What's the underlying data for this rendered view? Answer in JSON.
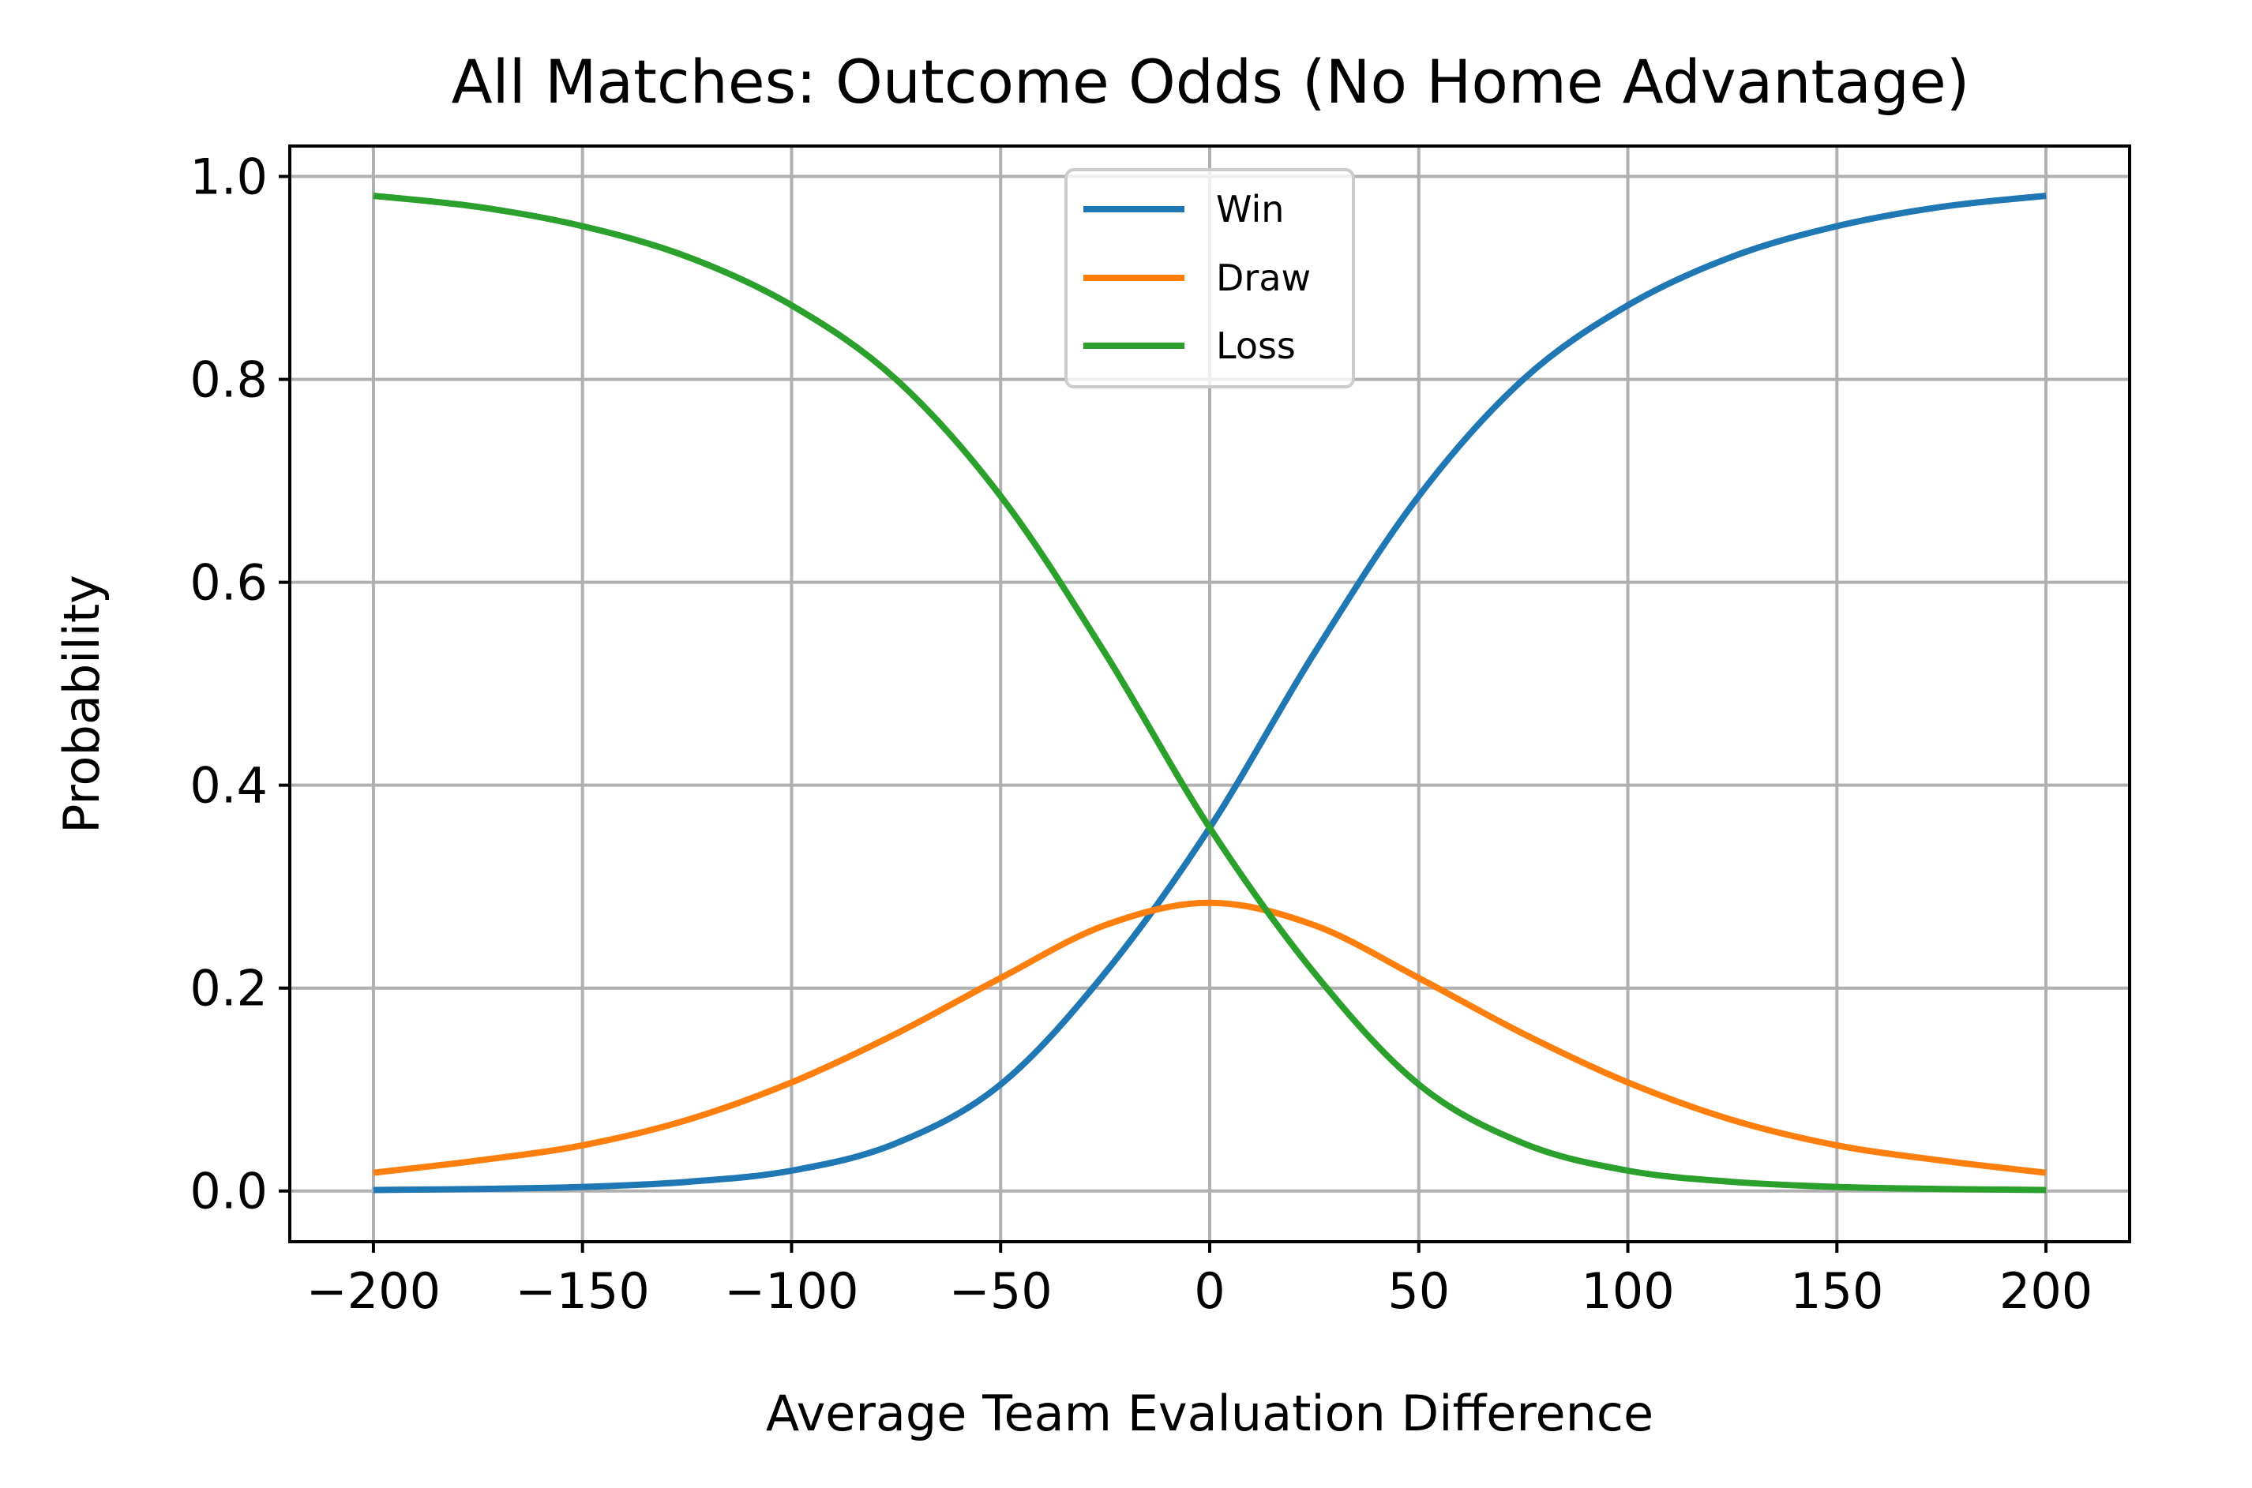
{
  "chart_data": {
    "type": "line",
    "title": "All Matches: Outcome Odds (No Home Advantage)",
    "xlabel": "Average Team Evaluation Difference",
    "ylabel": "Probability",
    "xlim": [
      -220,
      220
    ],
    "ylim": [
      -0.05,
      1.03
    ],
    "xticks": [
      -200,
      -150,
      -100,
      -50,
      0,
      50,
      100,
      150,
      200
    ],
    "xtick_labels": [
      "−200",
      "−150",
      "−100",
      "−50",
      "0",
      "50",
      "100",
      "150",
      "200"
    ],
    "yticks": [
      0.0,
      0.2,
      0.4,
      0.6,
      0.8,
      1.0
    ],
    "ytick_labels": [
      "0.0",
      "0.2",
      "0.4",
      "0.6",
      "0.8",
      "1.0"
    ],
    "grid": true,
    "legend_position": "upper-center",
    "x": [
      -200,
      -175,
      -150,
      -125,
      -100,
      -75,
      -50,
      -25,
      0,
      25,
      50,
      75,
      100,
      125,
      150,
      175,
      200
    ],
    "series": [
      {
        "name": "Win",
        "color": "#1f77b4",
        "values": [
          0.001,
          0.002,
          0.004,
          0.009,
          0.02,
          0.047,
          0.105,
          0.215,
          0.358,
          0.53,
          0.685,
          0.8,
          0.873,
          0.921,
          0.951,
          0.97,
          0.981
        ]
      },
      {
        "name": "Draw",
        "color": "#ff7f0e",
        "values": [
          0.018,
          0.03,
          0.045,
          0.07,
          0.107,
          0.155,
          0.21,
          0.262,
          0.284,
          0.262,
          0.21,
          0.155,
          0.107,
          0.07,
          0.045,
          0.03,
          0.018
        ]
      },
      {
        "name": "Loss",
        "color": "#2ca02c",
        "values": [
          0.981,
          0.97,
          0.951,
          0.921,
          0.873,
          0.8,
          0.685,
          0.53,
          0.358,
          0.215,
          0.105,
          0.047,
          0.02,
          0.009,
          0.004,
          0.002,
          0.001
        ]
      }
    ]
  }
}
